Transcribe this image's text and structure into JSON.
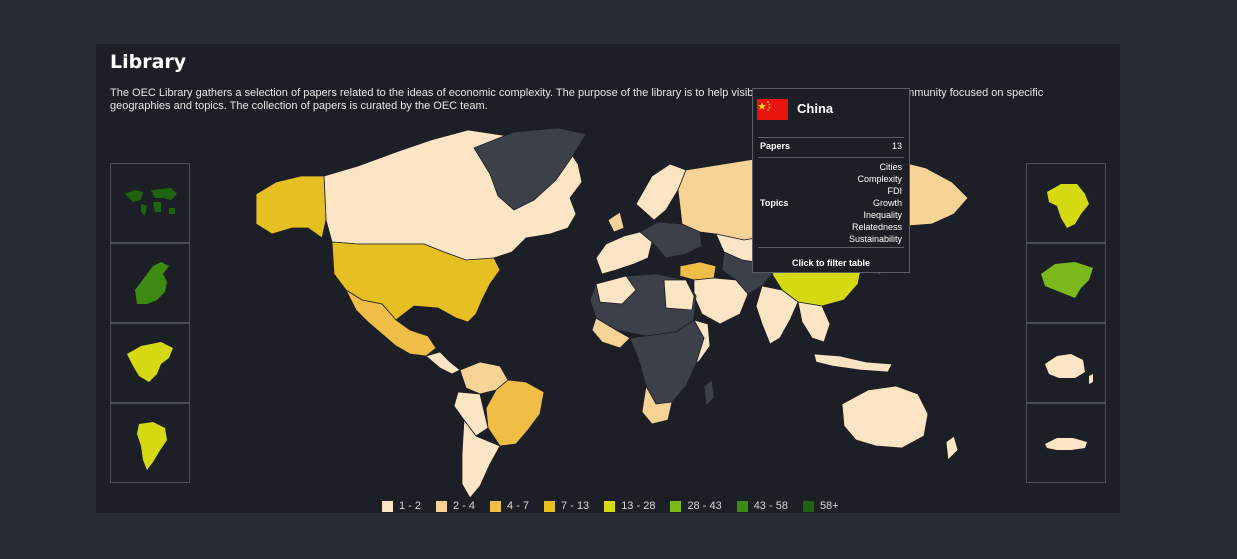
{
  "title": "Library",
  "description": "The OEC Library gathers a selection of papers related to the ideas of economic complexity. The purpose of the library is to help visibilize papers and connect the community focused on specific geographies and topics. The collection of papers is curated by the OEC team.",
  "legend": [
    {
      "label": "1 - 2",
      "color": "#fbe5c4"
    },
    {
      "label": "2 - 4",
      "color": "#f7d395"
    },
    {
      "label": "4 - 7",
      "color": "#f0bd47"
    },
    {
      "label": "7 - 13",
      "color": "#e6bf22"
    },
    {
      "label": "13 - 28",
      "color": "#d5d912"
    },
    {
      "label": "28 - 43",
      "color": "#7ab81b"
    },
    {
      "label": "43 - 58",
      "color": "#3d8a12"
    },
    {
      "label": "58+",
      "color": "#1d6310"
    }
  ],
  "colors": {
    "background": "#272c33",
    "panel": "#1c1f25",
    "no_data": "#3c4049",
    "country_border": "#1c1f25",
    "thumbnail_border": "#4a4f57"
  },
  "region_thumbnails": [
    {
      "region": "World",
      "side": "left",
      "color": "#1d6310"
    },
    {
      "region": "Europe",
      "side": "left",
      "color": "#3d8a12"
    },
    {
      "region": "North America",
      "side": "left",
      "color": "#d5d912"
    },
    {
      "region": "South America",
      "side": "left",
      "color": "#d5d912"
    },
    {
      "region": "Africa",
      "side": "right",
      "color": "#d5d912"
    },
    {
      "region": "Asia",
      "side": "right",
      "color": "#7ab81b"
    },
    {
      "region": "Oceania",
      "side": "right",
      "color": "#fbe5c4"
    },
    {
      "region": "Antarctica",
      "side": "right",
      "color": "#fbe5c4"
    }
  ],
  "tooltip": {
    "country": "China",
    "flag_color": "#e8130c",
    "papers_label": "Papers",
    "papers_value": "13",
    "topics_label": "Topics",
    "topics": [
      "Cities",
      "Complexity",
      "FDI",
      "Growth",
      "Inequality",
      "Relatedness",
      "Sustainability"
    ],
    "cta": "Click to filter table"
  },
  "map_countries": [
    {
      "name": "Canada",
      "bucket": "1 - 2",
      "color": "#fbe5c4"
    },
    {
      "name": "Alaska",
      "bucket": "7 - 13",
      "color": "#e6bf22"
    },
    {
      "name": "United States",
      "bucket": "7 - 13",
      "color": "#e6bf22"
    },
    {
      "name": "Mexico",
      "bucket": "4 - 7",
      "color": "#f0bd47"
    },
    {
      "name": "Brazil",
      "bucket": "4 - 7",
      "color": "#f0bd47"
    },
    {
      "name": "Argentina",
      "bucket": "1 - 2",
      "color": "#fbe5c4"
    },
    {
      "name": "Russia",
      "bucket": "2 - 4",
      "color": "#f7d395"
    },
    {
      "name": "China",
      "bucket": "13 - 28",
      "color": "#d5d912"
    },
    {
      "name": "India",
      "bucket": "1 - 2",
      "color": "#fbe5c4"
    },
    {
      "name": "Turkey",
      "bucket": "4 - 7",
      "color": "#f0bd47"
    },
    {
      "name": "Australia",
      "bucket": "1 - 2",
      "color": "#fbe5c4"
    },
    {
      "name": "South Africa",
      "bucket": "2 - 4",
      "color": "#f7d395"
    },
    {
      "name": "Greenland",
      "bucket": "no data",
      "color": "#3c4049"
    }
  ]
}
